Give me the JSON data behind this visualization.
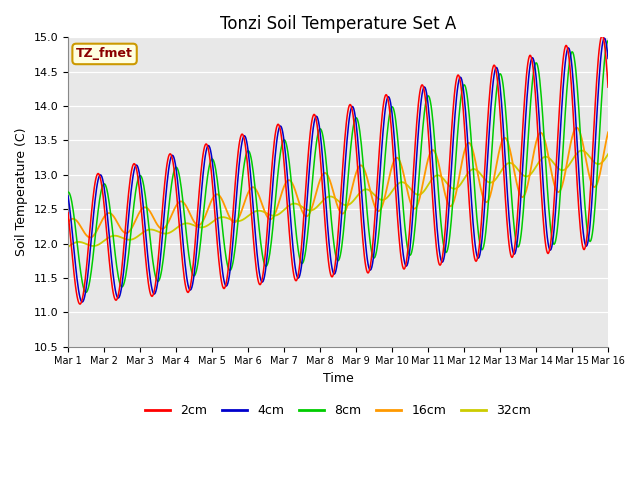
{
  "title": "Tonzi Soil Temperature Set A",
  "xlabel": "Time",
  "ylabel": "Soil Temperature (C)",
  "ylim": [
    10.5,
    15.0
  ],
  "annotation": "TZ_fmet",
  "series_colors": {
    "2cm": "#ff0000",
    "4cm": "#0000cc",
    "8cm": "#00cc00",
    "16cm": "#ff9900",
    "32cm": "#cccc00"
  },
  "series_labels": [
    "2cm",
    "4cm",
    "8cm",
    "16cm",
    "32cm"
  ],
  "xtick_labels": [
    "Mar 1",
    "Mar 2",
    "Mar 3",
    "Mar 4",
    "Mar 5",
    "Mar 6",
    "Mar 7",
    "Mar 8",
    "Mar 9",
    "Mar 10",
    "Mar 11",
    "Mar 12",
    "Mar 13",
    "Mar 14",
    "Mar 15",
    "Mar 16"
  ],
  "ytick_vals": [
    10.5,
    11.0,
    11.5,
    12.0,
    12.5,
    13.0,
    13.5,
    14.0,
    14.5,
    15.0
  ]
}
